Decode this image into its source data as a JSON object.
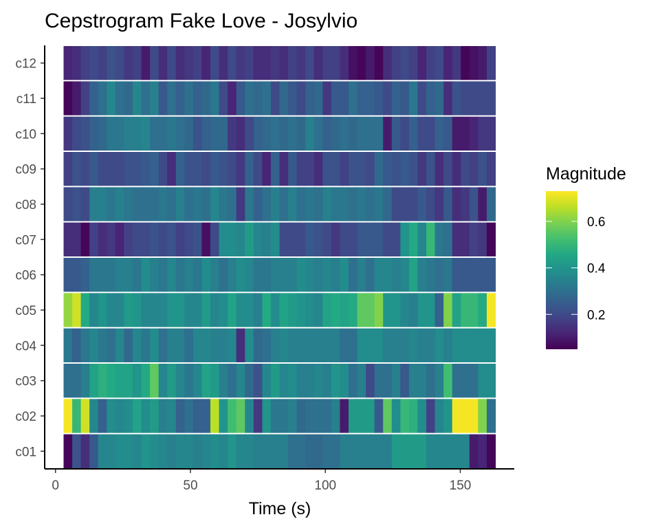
{
  "chart_data": {
    "type": "heatmap",
    "title": "Cepstrogram Fake Love - Josylvio",
    "xlabel": "Time (s)",
    "ylabel": "",
    "xlim": [
      -4,
      170
    ],
    "x_ticks": [
      0,
      50,
      100,
      150
    ],
    "y_categories": [
      "c01",
      "c02",
      "c03",
      "c04",
      "c05",
      "c06",
      "c07",
      "c08",
      "c09",
      "c10",
      "c11",
      "c12"
    ],
    "time_start": 3,
    "bin_width": 3.2,
    "legend": {
      "title": "Magnitude",
      "ticks": [
        0.2,
        0.4,
        0.6
      ],
      "range": [
        0.05,
        0.73
      ],
      "colors": [
        "#440154",
        "#482475",
        "#414487",
        "#355f8d",
        "#2a788e",
        "#21918c",
        "#22a884",
        "#44bf70",
        "#7ad151",
        "#bddf26",
        "#fde725"
      ],
      "placement": "right"
    },
    "rows": {
      "c01": [
        0.06,
        0.22,
        0.14,
        0.24,
        0.36,
        0.36,
        0.38,
        0.38,
        0.36,
        0.4,
        0.38,
        0.36,
        0.34,
        0.36,
        0.36,
        0.34,
        0.36,
        0.38,
        0.36,
        0.4,
        0.36,
        0.36,
        0.34,
        0.34,
        0.34,
        0.34,
        0.3,
        0.3,
        0.28,
        0.28,
        0.3,
        0.3,
        0.34,
        0.34,
        0.34,
        0.34,
        0.34,
        0.34,
        0.42,
        0.42,
        0.42,
        0.42,
        0.36,
        0.36,
        0.36,
        0.36,
        0.36,
        0.1,
        0.12,
        0.06
      ],
      "c02": [
        0.72,
        0.5,
        0.68,
        0.36,
        0.26,
        0.38,
        0.36,
        0.38,
        0.44,
        0.38,
        0.42,
        0.34,
        0.36,
        0.26,
        0.3,
        0.26,
        0.26,
        0.66,
        0.4,
        0.52,
        0.56,
        0.36,
        0.16,
        0.4,
        0.32,
        0.32,
        0.34,
        0.28,
        0.3,
        0.3,
        0.3,
        0.34,
        0.1,
        0.42,
        0.42,
        0.42,
        0.24,
        0.56,
        0.38,
        0.5,
        0.48,
        0.38,
        0.18,
        0.36,
        0.4,
        0.72,
        0.72,
        0.72,
        0.6,
        0.3
      ],
      "c03": [
        0.3,
        0.3,
        0.34,
        0.44,
        0.48,
        0.46,
        0.44,
        0.44,
        0.4,
        0.46,
        0.56,
        0.36,
        0.42,
        0.36,
        0.32,
        0.36,
        0.44,
        0.42,
        0.34,
        0.3,
        0.36,
        0.28,
        0.22,
        0.36,
        0.42,
        0.36,
        0.38,
        0.34,
        0.34,
        0.36,
        0.34,
        0.4,
        0.38,
        0.3,
        0.34,
        0.2,
        0.3,
        0.3,
        0.34,
        0.24,
        0.34,
        0.34,
        0.3,
        0.34,
        0.52,
        0.3,
        0.3,
        0.3,
        0.38,
        0.38
      ],
      "c04": [
        0.32,
        0.26,
        0.32,
        0.36,
        0.32,
        0.3,
        0.36,
        0.28,
        0.36,
        0.32,
        0.38,
        0.3,
        0.34,
        0.34,
        0.3,
        0.36,
        0.36,
        0.34,
        0.34,
        0.36,
        0.14,
        0.38,
        0.28,
        0.3,
        0.34,
        0.36,
        0.34,
        0.34,
        0.34,
        0.34,
        0.34,
        0.34,
        0.3,
        0.3,
        0.38,
        0.38,
        0.38,
        0.34,
        0.34,
        0.34,
        0.36,
        0.34,
        0.34,
        0.38,
        0.34,
        0.38,
        0.38,
        0.38,
        0.38,
        0.38
      ],
      "c05": [
        0.62,
        0.68,
        0.46,
        0.36,
        0.4,
        0.36,
        0.36,
        0.42,
        0.4,
        0.36,
        0.36,
        0.36,
        0.4,
        0.4,
        0.36,
        0.36,
        0.42,
        0.36,
        0.38,
        0.44,
        0.38,
        0.38,
        0.34,
        0.46,
        0.38,
        0.44,
        0.42,
        0.4,
        0.38,
        0.36,
        0.44,
        0.46,
        0.44,
        0.46,
        0.56,
        0.56,
        0.6,
        0.4,
        0.4,
        0.36,
        0.34,
        0.4,
        0.4,
        0.26,
        0.6,
        0.44,
        0.5,
        0.5,
        0.46,
        0.72
      ],
      "c06": [
        0.24,
        0.24,
        0.26,
        0.32,
        0.32,
        0.32,
        0.34,
        0.34,
        0.32,
        0.38,
        0.34,
        0.32,
        0.36,
        0.32,
        0.34,
        0.32,
        0.38,
        0.34,
        0.3,
        0.34,
        0.38,
        0.36,
        0.32,
        0.32,
        0.34,
        0.34,
        0.34,
        0.38,
        0.36,
        0.34,
        0.36,
        0.34,
        0.38,
        0.3,
        0.34,
        0.3,
        0.36,
        0.36,
        0.34,
        0.36,
        0.44,
        0.34,
        0.32,
        0.3,
        0.32,
        0.24,
        0.24,
        0.24,
        0.24,
        0.24
      ],
      "c07": [
        0.14,
        0.14,
        0.06,
        0.18,
        0.14,
        0.16,
        0.12,
        0.18,
        0.2,
        0.2,
        0.22,
        0.2,
        0.22,
        0.18,
        0.2,
        0.22,
        0.08,
        0.2,
        0.38,
        0.38,
        0.36,
        0.42,
        0.36,
        0.34,
        0.38,
        0.2,
        0.2,
        0.2,
        0.24,
        0.22,
        0.2,
        0.16,
        0.2,
        0.2,
        0.24,
        0.24,
        0.24,
        0.2,
        0.2,
        0.4,
        0.46,
        0.36,
        0.5,
        0.32,
        0.3,
        0.14,
        0.14,
        0.18,
        0.16,
        0.06
      ],
      "c08": [
        0.2,
        0.22,
        0.2,
        0.34,
        0.34,
        0.32,
        0.34,
        0.32,
        0.3,
        0.3,
        0.3,
        0.32,
        0.3,
        0.34,
        0.3,
        0.32,
        0.3,
        0.36,
        0.32,
        0.3,
        0.16,
        0.32,
        0.26,
        0.3,
        0.34,
        0.3,
        0.34,
        0.3,
        0.32,
        0.3,
        0.34,
        0.32,
        0.32,
        0.3,
        0.32,
        0.3,
        0.32,
        0.28,
        0.2,
        0.2,
        0.2,
        0.24,
        0.2,
        0.16,
        0.24,
        0.14,
        0.16,
        0.22,
        0.1,
        0.28
      ],
      "c09": [
        0.18,
        0.22,
        0.2,
        0.24,
        0.2,
        0.2,
        0.2,
        0.22,
        0.22,
        0.24,
        0.26,
        0.2,
        0.14,
        0.26,
        0.22,
        0.22,
        0.2,
        0.24,
        0.22,
        0.2,
        0.16,
        0.26,
        0.2,
        0.12,
        0.26,
        0.14,
        0.24,
        0.18,
        0.18,
        0.14,
        0.22,
        0.22,
        0.18,
        0.22,
        0.22,
        0.2,
        0.28,
        0.24,
        0.22,
        0.24,
        0.22,
        0.16,
        0.22,
        0.14,
        0.2,
        0.14,
        0.2,
        0.18,
        0.22,
        0.18
      ],
      "c10": [
        0.16,
        0.2,
        0.22,
        0.26,
        0.28,
        0.32,
        0.32,
        0.34,
        0.34,
        0.36,
        0.3,
        0.3,
        0.32,
        0.3,
        0.28,
        0.22,
        0.26,
        0.28,
        0.28,
        0.16,
        0.14,
        0.2,
        0.26,
        0.28,
        0.3,
        0.28,
        0.3,
        0.28,
        0.34,
        0.3,
        0.26,
        0.28,
        0.3,
        0.28,
        0.3,
        0.3,
        0.3,
        0.1,
        0.24,
        0.2,
        0.26,
        0.2,
        0.2,
        0.26,
        0.24,
        0.1,
        0.1,
        0.12,
        0.16,
        0.16
      ],
      "c11": [
        0.06,
        0.1,
        0.18,
        0.26,
        0.3,
        0.36,
        0.3,
        0.28,
        0.36,
        0.3,
        0.34,
        0.24,
        0.3,
        0.26,
        0.3,
        0.26,
        0.28,
        0.32,
        0.2,
        0.12,
        0.24,
        0.3,
        0.28,
        0.3,
        0.2,
        0.28,
        0.24,
        0.2,
        0.26,
        0.28,
        0.16,
        0.24,
        0.24,
        0.3,
        0.26,
        0.26,
        0.24,
        0.2,
        0.26,
        0.24,
        0.32,
        0.2,
        0.26,
        0.28,
        0.14,
        0.22,
        0.2,
        0.2,
        0.2,
        0.2
      ],
      "c12": [
        0.12,
        0.14,
        0.18,
        0.2,
        0.18,
        0.22,
        0.2,
        0.16,
        0.18,
        0.1,
        0.2,
        0.14,
        0.2,
        0.14,
        0.16,
        0.18,
        0.12,
        0.2,
        0.14,
        0.2,
        0.16,
        0.18,
        0.14,
        0.14,
        0.16,
        0.14,
        0.18,
        0.16,
        0.2,
        0.14,
        0.18,
        0.18,
        0.14,
        0.08,
        0.06,
        0.1,
        0.06,
        0.14,
        0.18,
        0.2,
        0.18,
        0.12,
        0.18,
        0.2,
        0.12,
        0.16,
        0.06,
        0.08,
        0.1,
        0.18
      ]
    }
  }
}
